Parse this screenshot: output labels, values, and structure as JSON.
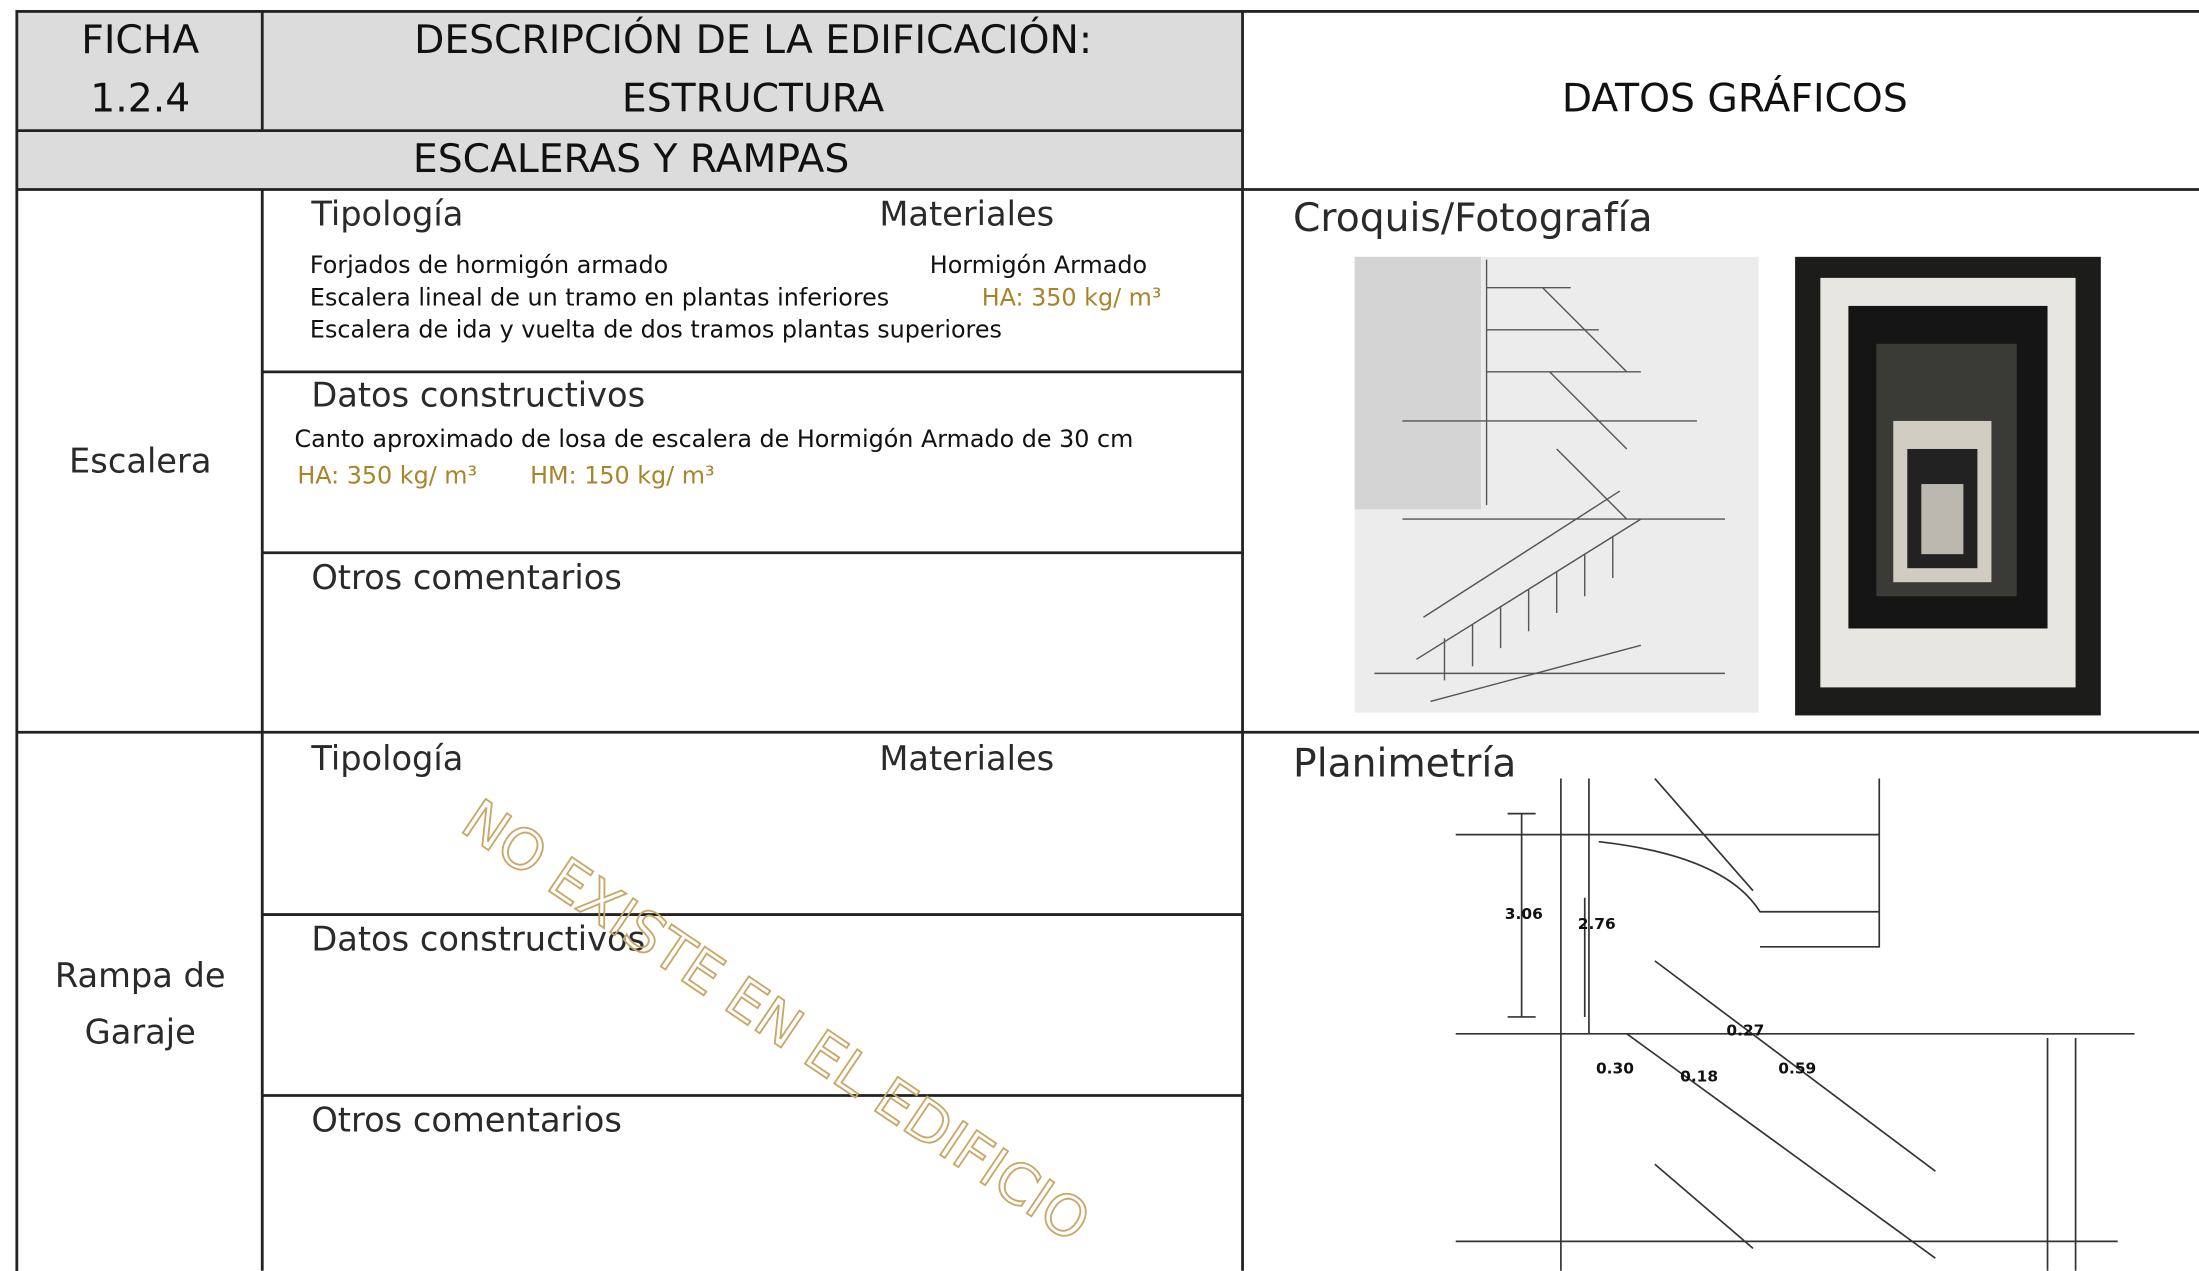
{
  "header": {
    "ficha_label": "FICHA",
    "ficha_number": "1.2.4",
    "title_line1": "DESCRIPCIÓN DE LA EDIFICACIÓN:",
    "title_line2": "ESTRUCTURA",
    "subtitle": "ESCALERAS Y RAMPAS",
    "right_title": "DATOS GRÁFICOS"
  },
  "sections": [
    {
      "name_lines": [
        "Escalera"
      ],
      "tipologia_label": "Tipología",
      "materiales_label": "Materiales",
      "tipologia_items": [
        "Forjados de hormigón armado",
        "Escalera lineal de un tramo en plantas inferiores",
        "Escalera de ida y vuelta de dos tramos plantas superiores"
      ],
      "materiales_items": [
        "Hormigón Armado",
        "HA: 350 kg/ m³"
      ],
      "datos_label": "Datos constructivos",
      "datos_text": "Canto aproximado de losa de escalera de Hormigón Armado de 30 cm",
      "datos_materials": [
        "HA: 350 kg/ m³",
        "HM: 150 kg/ m³"
      ],
      "otros_label": "Otros comentarios"
    },
    {
      "name_lines": [
        "Rampa de",
        "Garaje"
      ],
      "tipologia_label": "Tipología",
      "materiales_label": "Materiales",
      "datos_label": "Datos constructivos",
      "otros_label": "Otros comentarios"
    }
  ],
  "watermark": "NO EXISTE EN EL EDIFICIO",
  "graphics": {
    "sketch_label": "Croquis/Fotografía",
    "plan_label": "Planimetría",
    "plan_dimensions": [
      "3.06",
      "2.76",
      "0.27",
      "0.30",
      "0.18",
      "0.59"
    ]
  }
}
